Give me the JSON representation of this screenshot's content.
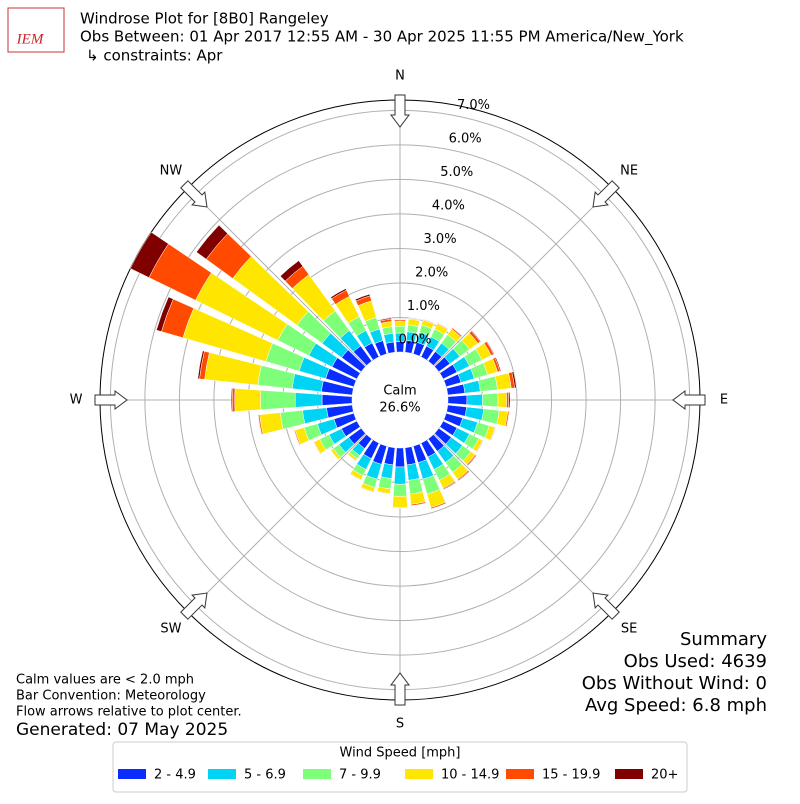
{
  "chart_data": {
    "type": "windrose",
    "logo_text": "IEM",
    "title": "Windrose Plot for [8B0] Rangeley",
    "subtitle": "Obs Between: 01 Apr 2017 12:55 AM - 30 Apr 2025 11:55 PM America/New_York",
    "constraints": "↳ constraints: Apr",
    "compass_labels": [
      "N",
      "NE",
      "E",
      "SE",
      "S",
      "SW",
      "W",
      "NW"
    ],
    "calm": {
      "label": "Calm",
      "value": 26.6,
      "value_label": "26.6%"
    },
    "rlim": [
      0,
      7.3
    ],
    "rticks": [
      {
        "value": 0,
        "label": "0.0%"
      },
      {
        "value": 1,
        "label": "1.0%"
      },
      {
        "value": 2,
        "label": "2.0%"
      },
      {
        "value": 3,
        "label": "3.0%"
      },
      {
        "value": 4,
        "label": "4.0%"
      },
      {
        "value": 5,
        "label": "5.0%"
      },
      {
        "value": 6,
        "label": "6.0%"
      },
      {
        "value": 7,
        "label": "7.0%"
      }
    ],
    "directions": [
      10,
      20,
      30,
      40,
      50,
      60,
      70,
      80,
      90,
      100,
      110,
      120,
      130,
      140,
      150,
      160,
      170,
      180,
      190,
      200,
      210,
      220,
      230,
      240,
      250,
      260,
      270,
      280,
      290,
      300,
      310,
      320,
      330,
      340,
      350,
      360
    ],
    "legend_title": "Wind Speed [mph]",
    "series": [
      {
        "name": "2 - 4.9",
        "color": "#0a2dff",
        "values": [
          0.35,
          0.35,
          0.35,
          0.35,
          0.4,
          0.45,
          0.45,
          0.5,
          0.55,
          0.55,
          0.5,
          0.45,
          0.45,
          0.45,
          0.45,
          0.5,
          0.5,
          0.55,
          0.5,
          0.55,
          0.5,
          0.35,
          0.45,
          0.5,
          0.6,
          0.75,
          0.87,
          0.9,
          0.85,
          0.8,
          0.7,
          0.55,
          0.45,
          0.4,
          0.3,
          0.3
        ]
      },
      {
        "name": "5 - 6.9",
        "color": "#00d4f4",
        "values": [
          0.25,
          0.3,
          0.3,
          0.3,
          0.35,
          0.4,
          0.4,
          0.45,
          0.45,
          0.5,
          0.45,
          0.4,
          0.4,
          0.4,
          0.4,
          0.5,
          0.45,
          0.5,
          0.4,
          0.45,
          0.35,
          0.25,
          0.35,
          0.4,
          0.5,
          0.7,
          0.78,
          0.85,
          0.8,
          0.75,
          0.7,
          0.55,
          0.4,
          0.35,
          0.25,
          0.25
        ]
      },
      {
        "name": "7 - 9.9",
        "color": "#7dff7a",
        "values": [
          0.2,
          0.22,
          0.25,
          0.3,
          0.35,
          0.4,
          0.4,
          0.5,
          0.45,
          0.45,
          0.35,
          0.3,
          0.3,
          0.35,
          0.35,
          0.45,
          0.4,
          0.35,
          0.3,
          0.25,
          0.2,
          0.12,
          0.2,
          0.3,
          0.4,
          0.65,
          1.0,
          1.0,
          1.0,
          1.0,
          0.9,
          0.7,
          0.45,
          0.35,
          0.2,
          0.2
        ]
      },
      {
        "name": "10 - 14.9",
        "color": "#ffe600",
        "values": [
          0.17,
          0.15,
          0.17,
          0.2,
          0.3,
          0.3,
          0.3,
          0.4,
          0.25,
          0.25,
          0.17,
          0.12,
          0.15,
          0.25,
          0.25,
          0.4,
          0.3,
          0.32,
          0.14,
          0.13,
          0.13,
          0.07,
          0.09,
          0.18,
          0.27,
          0.6,
          0.75,
          1.55,
          2.5,
          2.65,
          2.3,
          1.3,
          0.65,
          0.5,
          0.15,
          0.15
        ]
      },
      {
        "name": "15 - 19.9",
        "color": "#ff4a00",
        "values": [
          0.02,
          0.02,
          0.02,
          0.04,
          0.08,
          0.08,
          0.07,
          0.1,
          0.06,
          0.04,
          0.02,
          0.02,
          0.03,
          0.03,
          0.03,
          0.04,
          0.04,
          0.02,
          0.01,
          0.02,
          0.02,
          0.01,
          0.01,
          0.02,
          0.03,
          0.04,
          0.07,
          0.15,
          0.65,
          1.5,
          0.95,
          0.3,
          0.2,
          0.15,
          0.07,
          0.04
        ]
      },
      {
        "name": "20+",
        "color": "#800000",
        "values": [
          0.01,
          0.01,
          0.01,
          0.01,
          0.02,
          0.02,
          0.03,
          0.05,
          0.04,
          0.01,
          0.01,
          0.01,
          0.02,
          0.02,
          0.02,
          0.01,
          0.01,
          0.01,
          0,
          0,
          0,
          0,
          0,
          0,
          0,
          0.01,
          0.03,
          0.05,
          0.15,
          0.6,
          0.35,
          0.2,
          0.05,
          0.05,
          0.03,
          0.01
        ]
      }
    ],
    "summary": [
      "Summary",
      "Obs Used: 4639",
      "Obs Without Wind: 0",
      "Avg Speed: 6.8 mph"
    ],
    "notes": [
      "Calm values are < 2.0 mph",
      "Bar Convention: Meteorology",
      "Flow arrows relative to plot center."
    ],
    "generated": "Generated: 07 May 2025"
  }
}
